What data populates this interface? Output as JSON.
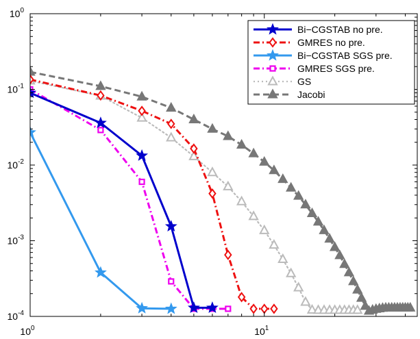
{
  "chart_data": {
    "type": "line",
    "title": "",
    "xlabel": "",
    "ylabel": "",
    "xscale": "log",
    "yscale": "log",
    "xlim": [
      1,
      45
    ],
    "ylim": [
      0.0001,
      1
    ],
    "grid": false,
    "legend_position": "top-right",
    "x_ticks": [
      {
        "value": 1,
        "base": "10",
        "exp": "0"
      },
      {
        "value": 10,
        "base": "10",
        "exp": "1"
      }
    ],
    "y_ticks": [
      {
        "value": 0.0001,
        "base": "10",
        "exp": "-4"
      },
      {
        "value": 0.001,
        "base": "10",
        "exp": "-3"
      },
      {
        "value": 0.01,
        "base": "10",
        "exp": "-2"
      },
      {
        "value": 0.1,
        "base": "10",
        "exp": "-1"
      },
      {
        "value": 1,
        "base": "10",
        "exp": "0"
      }
    ],
    "series": [
      {
        "name": "Bi−CGSTAB no pre.",
        "color": "#0000cc",
        "dash": "solid",
        "marker": "star",
        "markerFill": "#0000cc",
        "x": [
          1,
          2,
          3,
          4,
          5,
          6
        ],
        "y": [
          0.09,
          0.036,
          0.0133,
          0.00155,
          0.00013,
          0.00013
        ]
      },
      {
        "name": "GMRES no pre.",
        "color": "#ee1111",
        "dash": "dashdot",
        "marker": "diamond",
        "markerFill": "#ffffff",
        "x": [
          1,
          2,
          3,
          4,
          5,
          6,
          7,
          8,
          9,
          10,
          11
        ],
        "y": [
          0.135,
          0.083,
          0.052,
          0.035,
          0.0165,
          0.0042,
          0.00065,
          0.00018,
          0.000126,
          0.000126,
          0.000126
        ]
      },
      {
        "name": "Bi−CGSTAB SGS pre.",
        "color": "#3399ee",
        "dash": "solid",
        "marker": "star",
        "markerFill": "#3399ee",
        "x": [
          1,
          2,
          3,
          4
        ],
        "y": [
          0.027,
          0.00038,
          0.000128,
          0.000126
        ]
      },
      {
        "name": "GMRES SGS pre.",
        "color": "#ee00ee",
        "dash": "dashdot",
        "marker": "square",
        "markerFill": "#ffffff",
        "x": [
          1,
          2,
          3,
          4,
          5,
          6,
          7
        ],
        "y": [
          0.1,
          0.029,
          0.006,
          0.00029,
          0.000126,
          0.000126,
          0.000126
        ]
      },
      {
        "name": "GS",
        "color": "#bbbbbb",
        "dash": "dotted",
        "marker": "triangle",
        "markerFill": "#ffffff",
        "x": [
          1,
          2,
          3,
          4,
          5,
          6,
          7,
          8,
          9,
          10,
          11,
          12,
          13,
          14,
          15,
          16,
          17,
          18,
          19,
          20,
          21,
          22,
          23,
          24,
          25
        ],
        "y": [
          0.13,
          0.082,
          0.042,
          0.023,
          0.013,
          0.008,
          0.0052,
          0.0033,
          0.0021,
          0.00137,
          0.00088,
          0.00057,
          0.00037,
          0.00024,
          0.000155,
          0.000122,
          0.000121,
          0.000121,
          0.000121,
          0.000121,
          0.000121,
          0.000121,
          0.000121,
          0.000121,
          0.000121
        ]
      },
      {
        "name": "Jacobi",
        "color": "#777777",
        "dash": "dashed",
        "marker": "triangle",
        "markerFill": "#777777",
        "x": [
          1,
          2,
          3,
          4,
          5,
          6,
          7,
          8,
          9,
          10,
          11,
          12,
          13,
          14,
          15,
          16,
          17,
          18,
          19,
          20,
          21,
          22,
          23,
          24,
          25,
          26,
          27,
          28,
          29,
          30,
          31,
          32,
          33,
          34,
          35,
          36,
          37,
          38,
          39,
          40,
          41,
          42
        ],
        "y": [
          0.17,
          0.11,
          0.08,
          0.057,
          0.04,
          0.03,
          0.024,
          0.0185,
          0.0142,
          0.011,
          0.0085,
          0.0065,
          0.005,
          0.0039,
          0.003,
          0.0023,
          0.00178,
          0.00137,
          0.00106,
          0.00082,
          0.00064,
          0.00049,
          0.00038,
          0.00029,
          0.000225,
          0.000175,
          0.000137,
          0.000118,
          0.000122,
          0.000125,
          0.000127,
          0.000129,
          0.00013,
          0.00013,
          0.00013,
          0.00013,
          0.00013,
          0.00013,
          0.00013,
          0.00013,
          0.00013,
          0.00013
        ]
      }
    ]
  }
}
